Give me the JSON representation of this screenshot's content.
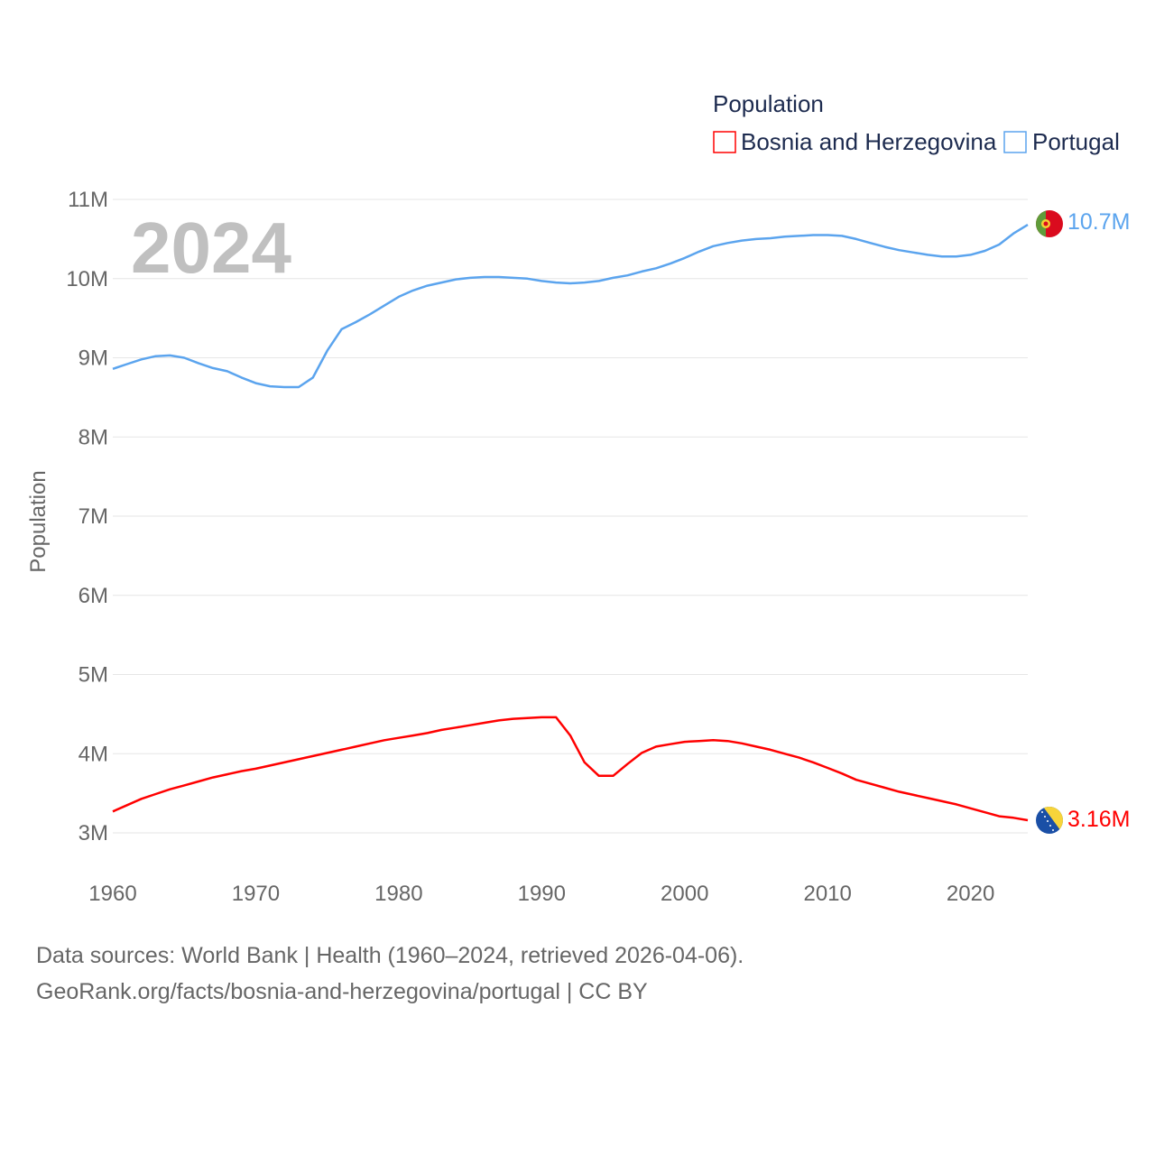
{
  "chart_data": {
    "type": "line",
    "title": "",
    "legend_title": "Population",
    "legend_position": "top-right",
    "ylabel": "Population",
    "xlabel": "",
    "big_year_label": "2024",
    "ylim": [
      3000000,
      11000000
    ],
    "xlim": [
      1960,
      2024
    ],
    "grid": true,
    "y_ticks": [
      {
        "v": 3000000,
        "label": "3M"
      },
      {
        "v": 4000000,
        "label": "4M"
      },
      {
        "v": 5000000,
        "label": "5M"
      },
      {
        "v": 6000000,
        "label": "6M"
      },
      {
        "v": 7000000,
        "label": "7M"
      },
      {
        "v": 8000000,
        "label": "8M"
      },
      {
        "v": 9000000,
        "label": "9M"
      },
      {
        "v": 10000000,
        "label": "10M"
      },
      {
        "v": 11000000,
        "label": "11M"
      }
    ],
    "x_ticks": [
      {
        "v": 1960,
        "label": "1960"
      },
      {
        "v": 1970,
        "label": "1970"
      },
      {
        "v": 1980,
        "label": "1980"
      },
      {
        "v": 1990,
        "label": "1990"
      },
      {
        "v": 2000,
        "label": "2000"
      },
      {
        "v": 2010,
        "label": "2010"
      },
      {
        "v": 2020,
        "label": "2020"
      }
    ],
    "x": [
      1960,
      1961,
      1962,
      1963,
      1964,
      1965,
      1966,
      1967,
      1968,
      1969,
      1970,
      1971,
      1972,
      1973,
      1974,
      1975,
      1976,
      1977,
      1978,
      1979,
      1980,
      1981,
      1982,
      1983,
      1984,
      1985,
      1986,
      1987,
      1988,
      1989,
      1990,
      1991,
      1992,
      1993,
      1994,
      1995,
      1996,
      1997,
      1998,
      1999,
      2000,
      2001,
      2002,
      2003,
      2004,
      2005,
      2006,
      2007,
      2008,
      2009,
      2010,
      2011,
      2012,
      2013,
      2014,
      2015,
      2016,
      2017,
      2018,
      2019,
      2020,
      2021,
      2022,
      2023,
      2024
    ],
    "series": [
      {
        "name": "Bosnia and Herzegovina",
        "color": "#ff0000",
        "end_label": "3.16M",
        "values": [
          3.27,
          3.35,
          3.43,
          3.49,
          3.55,
          3.6,
          3.65,
          3.7,
          3.74,
          3.78,
          3.81,
          3.85,
          3.89,
          3.93,
          3.97,
          4.01,
          4.05,
          4.09,
          4.13,
          4.17,
          4.2,
          4.23,
          4.26,
          4.3,
          4.33,
          4.36,
          4.39,
          4.42,
          4.44,
          4.45,
          4.46,
          4.46,
          4.23,
          3.89,
          3.72,
          3.72,
          3.87,
          4.01,
          4.09,
          4.12,
          4.15,
          4.16,
          4.17,
          4.16,
          4.13,
          4.09,
          4.05,
          4.0,
          3.95,
          3.89,
          3.82,
          3.75,
          3.67,
          3.62,
          3.57,
          3.52,
          3.48,
          3.44,
          3.4,
          3.36,
          3.31,
          3.26,
          3.21,
          3.19,
          3.16
        ]
      },
      {
        "name": "Portugal",
        "color": "#5ba4ee",
        "end_label": "10.7M",
        "values": [
          8.86,
          8.92,
          8.98,
          9.02,
          9.03,
          9.0,
          8.93,
          8.87,
          8.83,
          8.75,
          8.68,
          8.64,
          8.63,
          8.63,
          8.75,
          9.09,
          9.36,
          9.45,
          9.55,
          9.66,
          9.77,
          9.85,
          9.91,
          9.95,
          9.99,
          10.01,
          10.02,
          10.02,
          10.01,
          10.0,
          9.97,
          9.95,
          9.94,
          9.95,
          9.97,
          10.01,
          10.04,
          10.09,
          10.13,
          10.19,
          10.26,
          10.34,
          10.41,
          10.45,
          10.48,
          10.5,
          10.51,
          10.53,
          10.54,
          10.55,
          10.55,
          10.54,
          10.5,
          10.45,
          10.4,
          10.36,
          10.33,
          10.3,
          10.28,
          10.28,
          10.3,
          10.35,
          10.43,
          10.57,
          10.68
        ]
      }
    ]
  },
  "footer": {
    "line1": "Data sources: World Bank | Health (1960–2024, retrieved 2026-04-06).",
    "line2": "GeoRank.org/facts/bosnia-and-herzegovina/portugal | CC BY"
  }
}
